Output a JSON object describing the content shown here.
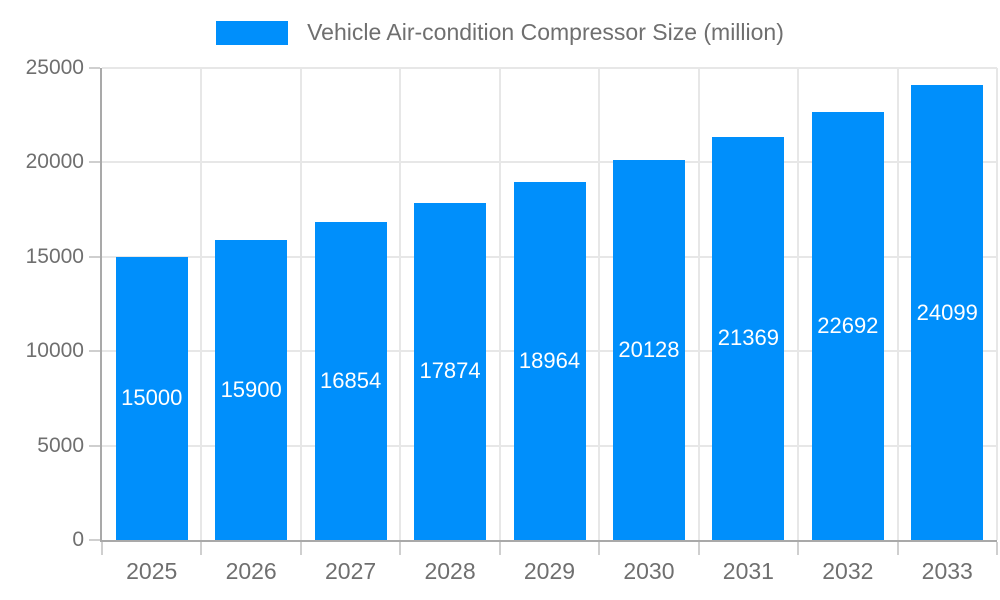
{
  "chart_data": {
    "type": "bar",
    "title": "Vehicle Air-condition Compressor Size (million)",
    "categories": [
      "2025",
      "2026",
      "2027",
      "2028",
      "2029",
      "2030",
      "2031",
      "2032",
      "2033"
    ],
    "values": [
      15000,
      15900,
      16854,
      17874,
      18964,
      20128,
      21369,
      22692,
      24099
    ],
    "xlabel": "",
    "ylabel": "",
    "ylim": [
      0,
      25000
    ],
    "ytick_step": 5000,
    "ytick_labels": [
      "0",
      "5000",
      "10000",
      "15000",
      "20000",
      "25000"
    ],
    "legend_position": "top",
    "grid": true,
    "bar_color": "#008FFB",
    "bar_label_color": "#ffffff",
    "axis_text_color": "#6f6f6f",
    "grid_color": "#e7e7e7",
    "tick_color": "#cfcfcf",
    "axis_line_color": "#a9a9a9",
    "background_color": "#ffffff"
  }
}
